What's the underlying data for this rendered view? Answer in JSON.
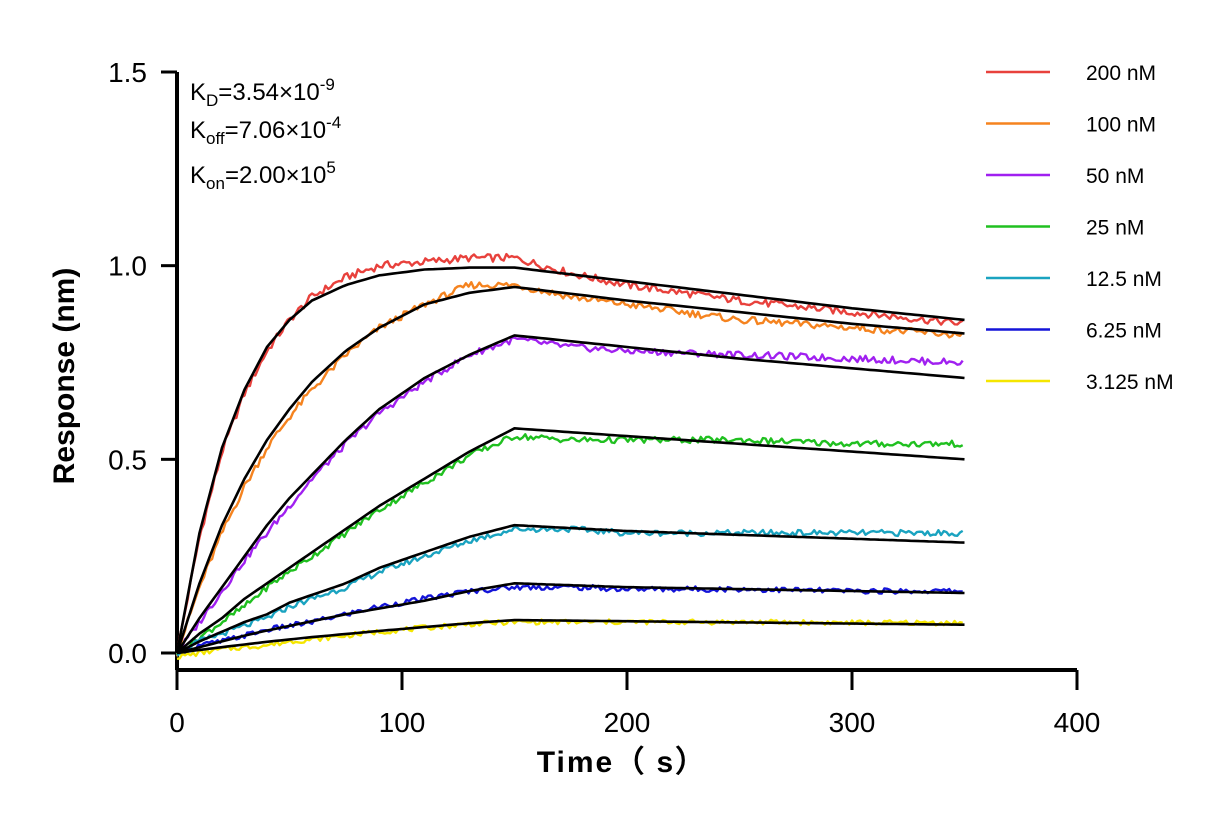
{
  "chart_data": {
    "type": "line",
    "title": "",
    "xlabel": "Time（ s）",
    "ylabel": "Response (nm)",
    "xlim": [
      0,
      400
    ],
    "ylim": [
      0,
      1.5
    ],
    "x_ticks": [
      "0",
      "100",
      "200",
      "300",
      "400"
    ],
    "y_ticks": [
      "0.0",
      "0.5",
      "1.0",
      "1.5"
    ],
    "grid": false,
    "legend_position": "top-right",
    "annotations": {
      "kd": {
        "base": "K",
        "sub": "D",
        "mantissa": "=3.54×10",
        "exp": "-9"
      },
      "koff": {
        "base": "K",
        "sub": "off",
        "mantissa": "=7.06×10",
        "exp": "-4"
      },
      "kon": {
        "base": "K",
        "sub": "on",
        "mantissa": "=2.00×10",
        "exp": "5"
      }
    },
    "association_end_s": 150,
    "dissociation_end_s": 350,
    "fit_color": "#000000",
    "series": [
      {
        "name": "200 nM",
        "color": "#e8413c",
        "x": [
          0,
          10,
          20,
          30,
          40,
          50,
          60,
          75,
          90,
          110,
          130,
          150,
          175,
          200,
          250,
          300,
          350
        ],
        "values": [
          0,
          0.3,
          0.52,
          0.67,
          0.78,
          0.86,
          0.92,
          0.97,
          1.0,
          1.01,
          1.02,
          1.02,
          0.98,
          0.95,
          0.91,
          0.88,
          0.85
        ]
      },
      {
        "name": "100 nM",
        "color": "#f5831f",
        "x": [
          0,
          10,
          20,
          30,
          40,
          50,
          60,
          75,
          90,
          110,
          130,
          150,
          175,
          200,
          250,
          300,
          350
        ],
        "values": [
          0,
          0.17,
          0.31,
          0.43,
          0.53,
          0.61,
          0.68,
          0.77,
          0.84,
          0.9,
          0.95,
          0.95,
          0.92,
          0.9,
          0.86,
          0.84,
          0.82
        ]
      },
      {
        "name": "50 nM",
        "color": "#a020f0",
        "x": [
          0,
          10,
          20,
          30,
          40,
          50,
          60,
          75,
          90,
          110,
          130,
          150,
          175,
          200,
          250,
          300,
          350
        ],
        "values": [
          0,
          0.08,
          0.16,
          0.24,
          0.31,
          0.38,
          0.45,
          0.54,
          0.62,
          0.7,
          0.77,
          0.81,
          0.79,
          0.78,
          0.77,
          0.76,
          0.75
        ]
      },
      {
        "name": "25 nM",
        "color": "#20c020",
        "x": [
          0,
          10,
          20,
          30,
          40,
          50,
          60,
          75,
          90,
          110,
          130,
          150,
          175,
          200,
          250,
          300,
          350
        ],
        "values": [
          0,
          0.04,
          0.08,
          0.12,
          0.17,
          0.21,
          0.25,
          0.31,
          0.37,
          0.44,
          0.51,
          0.56,
          0.55,
          0.55,
          0.55,
          0.54,
          0.54
        ]
      },
      {
        "name": "12.5 nM",
        "color": "#1aa3c0",
        "x": [
          0,
          10,
          20,
          30,
          40,
          50,
          60,
          75,
          90,
          110,
          130,
          150,
          175,
          200,
          250,
          300,
          350
        ],
        "values": [
          0,
          0.03,
          0.05,
          0.07,
          0.09,
          0.12,
          0.14,
          0.17,
          0.21,
          0.25,
          0.29,
          0.32,
          0.32,
          0.31,
          0.31,
          0.31,
          0.31
        ]
      },
      {
        "name": "6.25 nM",
        "color": "#1414d8",
        "x": [
          0,
          10,
          20,
          30,
          40,
          50,
          60,
          75,
          90,
          110,
          130,
          150,
          175,
          200,
          250,
          300,
          350
        ],
        "values": [
          0,
          0.02,
          0.03,
          0.045,
          0.06,
          0.07,
          0.08,
          0.1,
          0.12,
          0.14,
          0.16,
          0.17,
          0.17,
          0.165,
          0.165,
          0.16,
          0.16
        ]
      },
      {
        "name": "3.125 nM",
        "color": "#f5e600",
        "x": [
          0,
          10,
          20,
          30,
          40,
          50,
          60,
          75,
          90,
          110,
          130,
          150,
          175,
          200,
          250,
          300,
          350
        ],
        "values": [
          -0.01,
          0.0,
          0.01,
          0.015,
          0.02,
          0.03,
          0.035,
          0.045,
          0.055,
          0.065,
          0.075,
          0.08,
          0.08,
          0.08,
          0.08,
          0.078,
          0.078
        ]
      }
    ],
    "fits": [
      {
        "assoc_end": 0.995,
        "x": [
          0,
          10,
          20,
          30,
          40,
          50,
          60,
          75,
          90,
          110,
          130,
          150,
          200,
          250,
          300,
          350
        ],
        "values": [
          0,
          0.31,
          0.53,
          0.68,
          0.79,
          0.86,
          0.91,
          0.95,
          0.975,
          0.99,
          0.995,
          0.995,
          0.96,
          0.925,
          0.89,
          0.86
        ]
      },
      {
        "assoc_end": 0.945,
        "x": [
          0,
          10,
          20,
          30,
          40,
          50,
          60,
          75,
          90,
          110,
          130,
          150,
          200,
          250,
          300,
          350
        ],
        "values": [
          0,
          0.18,
          0.33,
          0.45,
          0.55,
          0.63,
          0.7,
          0.78,
          0.84,
          0.9,
          0.93,
          0.945,
          0.91,
          0.88,
          0.85,
          0.825
        ]
      },
      {
        "assoc_end": 0.82,
        "x": [
          0,
          10,
          20,
          30,
          40,
          50,
          60,
          75,
          90,
          110,
          130,
          150,
          200,
          250,
          300,
          350
        ],
        "values": [
          0,
          0.09,
          0.17,
          0.25,
          0.33,
          0.4,
          0.46,
          0.55,
          0.63,
          0.71,
          0.77,
          0.82,
          0.79,
          0.76,
          0.735,
          0.71
        ]
      },
      {
        "assoc_end": 0.58,
        "x": [
          0,
          10,
          20,
          30,
          40,
          50,
          60,
          75,
          90,
          110,
          130,
          150,
          200,
          250,
          300,
          350
        ],
        "values": [
          0,
          0.05,
          0.09,
          0.14,
          0.18,
          0.22,
          0.26,
          0.32,
          0.38,
          0.45,
          0.52,
          0.58,
          0.56,
          0.54,
          0.52,
          0.5
        ]
      },
      {
        "assoc_end": 0.33,
        "x": [
          0,
          10,
          20,
          30,
          40,
          50,
          60,
          75,
          90,
          110,
          130,
          150,
          200,
          250,
          300,
          350
        ],
        "values": [
          0,
          0.03,
          0.055,
          0.08,
          0.1,
          0.13,
          0.15,
          0.18,
          0.22,
          0.26,
          0.3,
          0.33,
          0.315,
          0.305,
          0.295,
          0.285
        ]
      },
      {
        "assoc_end": 0.18,
        "x": [
          0,
          10,
          20,
          30,
          40,
          50,
          60,
          75,
          90,
          110,
          130,
          150,
          200,
          250,
          300,
          350
        ],
        "values": [
          0,
          0.015,
          0.03,
          0.045,
          0.058,
          0.07,
          0.082,
          0.1,
          0.115,
          0.135,
          0.16,
          0.18,
          0.17,
          0.165,
          0.16,
          0.155
        ]
      },
      {
        "assoc_end": 0.085,
        "x": [
          0,
          10,
          20,
          30,
          40,
          50,
          60,
          75,
          90,
          110,
          130,
          150,
          200,
          250,
          300,
          350
        ],
        "values": [
          0,
          0.008,
          0.015,
          0.022,
          0.029,
          0.035,
          0.041,
          0.049,
          0.057,
          0.067,
          0.077,
          0.085,
          0.082,
          0.079,
          0.076,
          0.073
        ]
      }
    ]
  }
}
